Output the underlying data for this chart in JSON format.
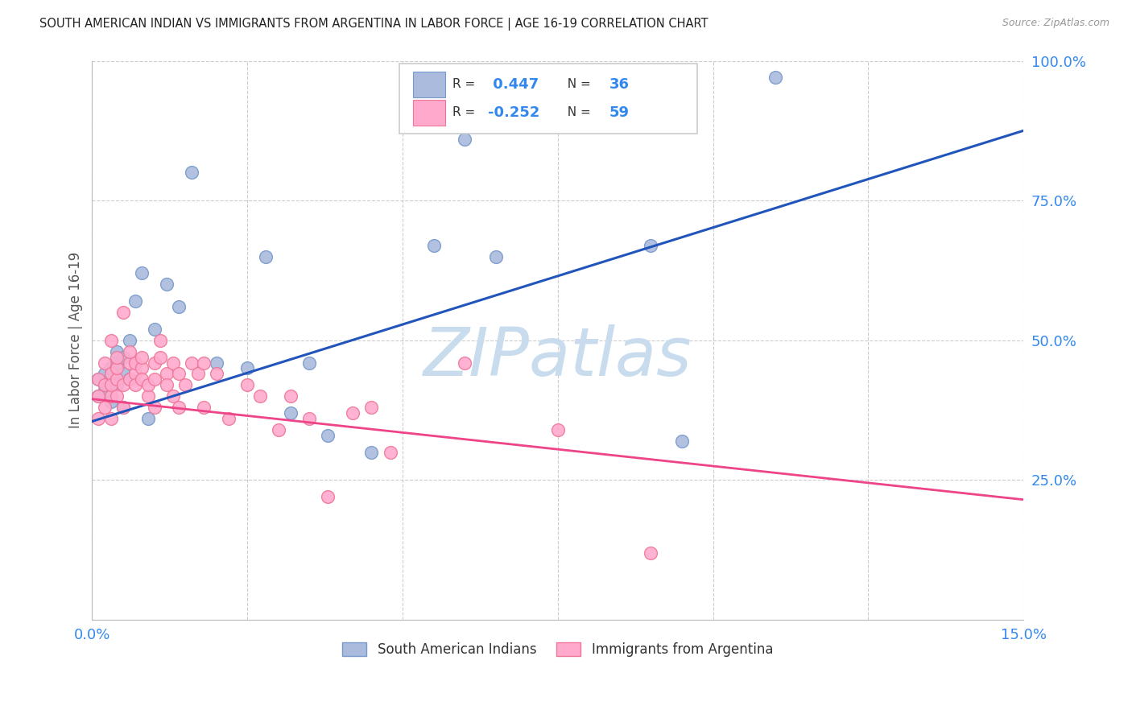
{
  "title": "SOUTH AMERICAN INDIAN VS IMMIGRANTS FROM ARGENTINA IN LABOR FORCE | AGE 16-19 CORRELATION CHART",
  "source": "Source: ZipAtlas.com",
  "ylabel": "In Labor Force | Age 16-19",
  "xlim": [
    0.0,
    0.15
  ],
  "ylim": [
    0.0,
    1.0
  ],
  "xticks": [
    0.0,
    0.025,
    0.05,
    0.075,
    0.1,
    0.125,
    0.15
  ],
  "yticks": [
    0.0,
    0.25,
    0.5,
    0.75,
    1.0
  ],
  "blue_line_color": "#2255BB",
  "blue_scatter_face": "#AABBDD",
  "blue_scatter_edge": "#7799CC",
  "pink_line_color": "#EE4488",
  "pink_scatter_face": "#FFAACC",
  "pink_scatter_edge": "#EE7799",
  "r_blue": 0.447,
  "n_blue": 36,
  "r_pink": -0.252,
  "n_pink": 59,
  "watermark": "ZIPatlas",
  "legend_label_blue": "South American Indians",
  "legend_label_pink": "Immigrants from Argentina",
  "blue_x": [
    0.001,
    0.001,
    0.002,
    0.002,
    0.002,
    0.003,
    0.003,
    0.003,
    0.004,
    0.004,
    0.004,
    0.005,
    0.005,
    0.005,
    0.006,
    0.006,
    0.007,
    0.008,
    0.009,
    0.01,
    0.012,
    0.014,
    0.016,
    0.02,
    0.025,
    0.028,
    0.032,
    0.035,
    0.038,
    0.045,
    0.055,
    0.06,
    0.065,
    0.09,
    0.095,
    0.11
  ],
  "blue_y": [
    0.4,
    0.43,
    0.41,
    0.44,
    0.42,
    0.45,
    0.44,
    0.39,
    0.46,
    0.42,
    0.48,
    0.44,
    0.47,
    0.38,
    0.5,
    0.43,
    0.57,
    0.62,
    0.36,
    0.52,
    0.6,
    0.56,
    0.8,
    0.46,
    0.45,
    0.65,
    0.37,
    0.46,
    0.33,
    0.3,
    0.67,
    0.86,
    0.65,
    0.67,
    0.32,
    0.97
  ],
  "pink_x": [
    0.001,
    0.001,
    0.001,
    0.002,
    0.002,
    0.002,
    0.003,
    0.003,
    0.003,
    0.003,
    0.003,
    0.004,
    0.004,
    0.004,
    0.004,
    0.005,
    0.005,
    0.005,
    0.006,
    0.006,
    0.006,
    0.007,
    0.007,
    0.007,
    0.008,
    0.008,
    0.008,
    0.009,
    0.009,
    0.01,
    0.01,
    0.01,
    0.011,
    0.011,
    0.012,
    0.012,
    0.013,
    0.013,
    0.014,
    0.014,
    0.015,
    0.016,
    0.017,
    0.018,
    0.018,
    0.02,
    0.022,
    0.025,
    0.027,
    0.03,
    0.032,
    0.035,
    0.038,
    0.042,
    0.045,
    0.048,
    0.06,
    0.075,
    0.09
  ],
  "pink_y": [
    0.4,
    0.43,
    0.36,
    0.46,
    0.42,
    0.38,
    0.44,
    0.4,
    0.42,
    0.36,
    0.5,
    0.43,
    0.45,
    0.47,
    0.4,
    0.55,
    0.42,
    0.38,
    0.46,
    0.43,
    0.48,
    0.44,
    0.46,
    0.42,
    0.45,
    0.43,
    0.47,
    0.4,
    0.42,
    0.46,
    0.43,
    0.38,
    0.47,
    0.5,
    0.44,
    0.42,
    0.46,
    0.4,
    0.44,
    0.38,
    0.42,
    0.46,
    0.44,
    0.46,
    0.38,
    0.44,
    0.36,
    0.42,
    0.4,
    0.34,
    0.4,
    0.36,
    0.22,
    0.37,
    0.38,
    0.3,
    0.46,
    0.34,
    0.12
  ],
  "blue_line_x0": 0.0,
  "blue_line_y0": 0.355,
  "blue_line_x1": 0.15,
  "blue_line_y1": 0.875,
  "pink_line_x0": 0.0,
  "pink_line_y0": 0.395,
  "pink_line_x1": 0.15,
  "pink_line_y1": 0.215
}
